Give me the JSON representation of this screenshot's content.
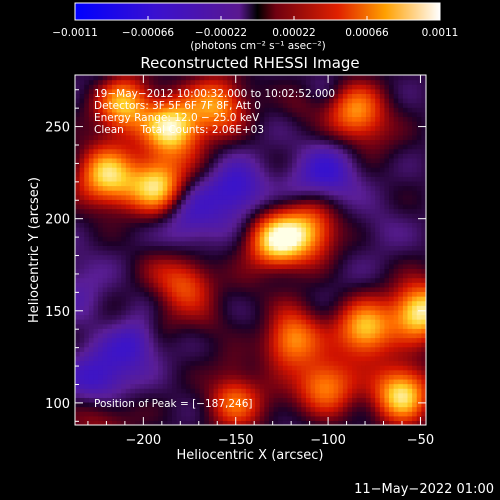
{
  "chart_data": {
    "type": "heatmap",
    "title": "Reconstructed RHESSI Image",
    "xlabel": "Heliocentric X (arcsec)",
    "ylabel": "Heliocentric Y (arcsec)",
    "xlim": [
      -237,
      -47
    ],
    "ylim": [
      88,
      278
    ],
    "x_ticks": [
      -200,
      -150,
      -100,
      -50
    ],
    "x_tick_labels": [
      "−200",
      "−150",
      "−100",
      "−50"
    ],
    "y_ticks": [
      100,
      150,
      200,
      250
    ],
    "y_tick_labels": [
      "100",
      "150",
      "200",
      "250"
    ],
    "colorbar": {
      "colormap": "blue-violet-red-yellow-white",
      "range": [
        -0.0011,
        0.0011
      ],
      "ticks": [
        -0.0011,
        -0.00066,
        -0.00022,
        0.00022,
        0.00066,
        0.0011
      ],
      "tick_labels": [
        "−0.0011",
        "−0.00066",
        "−0.00022",
        "0.00022",
        "0.00066",
        "0.0011"
      ],
      "units": "(photons cm⁻² s⁻¹ asec⁻²)"
    },
    "annotations": [
      "19−May−2012 10:00:32.000 to 10:02:52.000",
      "Detectors: 3F 5F 6F 7F 8F, Att 0",
      "Energy Range: 12.0 − 25.0 keV",
      "Clean     Total Counts: 2.06E+03"
    ],
    "peak_text": "Position of Peak = [−187,246]",
    "peak": [
      -187,
      246
    ],
    "bright_regions": [
      {
        "x": -210,
        "y": 262,
        "level": 0.85
      },
      {
        "x": -185,
        "y": 250,
        "level": 1.0
      },
      {
        "x": -220,
        "y": 225,
        "level": 0.75
      },
      {
        "x": -192,
        "y": 218,
        "level": 0.95
      },
      {
        "x": -160,
        "y": 262,
        "level": 0.7
      },
      {
        "x": -128,
        "y": 188,
        "level": 0.95
      },
      {
        "x": -178,
        "y": 165,
        "level": 0.55
      },
      {
        "x": -85,
        "y": 258,
        "level": 0.7
      },
      {
        "x": -110,
        "y": 195,
        "level": 0.55
      },
      {
        "x": -50,
        "y": 150,
        "level": 1.0
      },
      {
        "x": -80,
        "y": 140,
        "level": 0.85
      },
      {
        "x": -120,
        "y": 135,
        "level": 0.75
      },
      {
        "x": -60,
        "y": 105,
        "level": 0.95
      },
      {
        "x": -100,
        "y": 110,
        "level": 0.6
      },
      {
        "x": -150,
        "y": 100,
        "level": 0.5
      },
      {
        "x": -215,
        "y": 140,
        "level": 0.35
      },
      {
        "x": -225,
        "y": 95,
        "level": 0.4
      }
    ],
    "dark_regions": [
      {
        "x": -210,
        "y": 135,
        "level": 0.55
      },
      {
        "x": -225,
        "y": 110,
        "level": 0.5
      },
      {
        "x": -150,
        "y": 215,
        "level": 0.45
      },
      {
        "x": -100,
        "y": 225,
        "level": 0.4
      },
      {
        "x": -175,
        "y": 200,
        "level": 0.4
      }
    ]
  },
  "footer": {
    "timestamp": "11−May−2022 01:00"
  }
}
